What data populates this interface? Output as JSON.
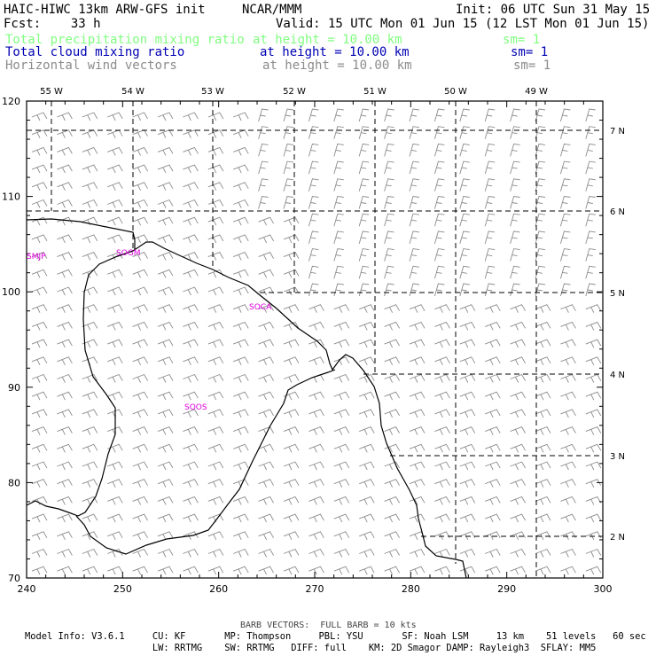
{
  "header": {
    "line1_left": "HAIC-HIWC 13km ARW-GFS init",
    "line1_mid": "NCAR/MMM",
    "line1_right": "Init: 06 UTC Sun 31 May 15",
    "line2_left": "Fcst:    33 h",
    "line2_right": "Valid: 15 UTC Mon 01 Jun 15 (12 LST Mon 01 Jun 15)",
    "fields": [
      {
        "name": "Total precipitation mixing ratio",
        "level": "at height = 10.00 km",
        "sm": "sm= 1",
        "color": "#80ff80"
      },
      {
        "name": "Total cloud mixing ratio",
        "level": "at height = 10.00 km",
        "sm": "sm= 1",
        "color": "#0000b4"
      },
      {
        "name": "Horizontal wind vectors",
        "level": "at height = 10.00 km",
        "sm": "sm= 1",
        "color": "#8c8c8c"
      }
    ]
  },
  "map": {
    "x_ticks": [
      "240",
      "250",
      "260",
      "270",
      "280",
      "290",
      "300"
    ],
    "y_ticks": [
      "70",
      "80",
      "90",
      "100",
      "110",
      "120"
    ],
    "lon_labels": [
      "55 W",
      "54 W",
      "53 W",
      "52 W",
      "51 W",
      "50 W",
      "49 W"
    ],
    "lat_labels": [
      "7 N",
      "6 N",
      "5 N",
      "4 N",
      "3 N",
      "2 N"
    ],
    "stations": [
      "SMJP",
      "SOGM",
      "SOCA",
      "SOOS"
    ],
    "station_color": "#e000e0",
    "barb_color": "#8c8c8c",
    "coast_color": "#000000"
  },
  "footer": {
    "barb_note": "BARB VECTORS:  FULL BARB = 10 kts",
    "line1": "Model Info: V3.6.1     CU: KF       MP: Thompson     PBL: YSU       SF: Noah LSM     13 km    51 levels   60 sec",
    "line2": "                       LW: RRTMG    SW: RRTMG   DIFF: full    KM: 2D Smagor DAMP: Rayleigh3  SFLAY: MM5"
  }
}
